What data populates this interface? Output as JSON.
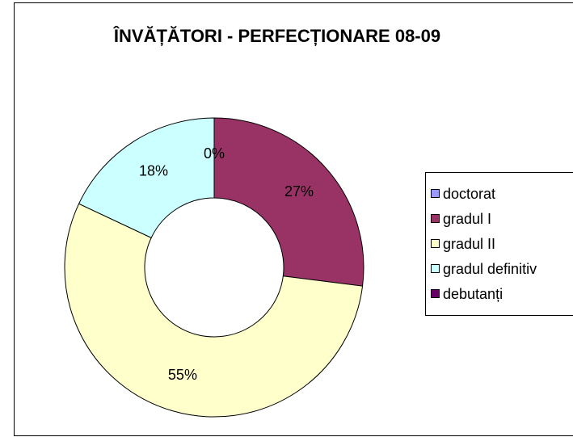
{
  "chart_data": {
    "type": "donut",
    "title": "ÎNVĂȚĂTORI - PERFECȚIONARE 08-09",
    "categories": [
      "doctorat",
      "gradul I",
      "gradul II",
      "gradul definitiv",
      "debutanți"
    ],
    "values": [
      0,
      27,
      55,
      18,
      0
    ],
    "value_labels": [
      "0%",
      "27%",
      "55%",
      "18%",
      "0%"
    ],
    "colors": [
      "#9999ff",
      "#993366",
      "#ffffcc",
      "#ccffff",
      "#660066"
    ],
    "legend": "right"
  }
}
